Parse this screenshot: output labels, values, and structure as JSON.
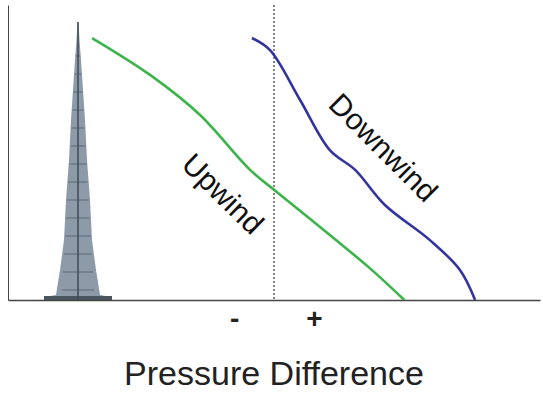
{
  "chart_data": {
    "type": "line",
    "x_label": "Pressure Difference",
    "xlim": [
      -10,
      10
    ],
    "xticks": [
      {
        "value": -1.5,
        "label": "-"
      },
      {
        "value": 1.5,
        "label": "+"
      }
    ],
    "ylim": [
      0,
      100
    ],
    "tick_labels": "x",
    "vline": 0,
    "series": [
      {
        "name": "Upwind",
        "color": "#3cb44b",
        "x": [
          -6.84,
          -4.66,
          -2.78,
          -0.9,
          0.15,
          2.1,
          3.6,
          4.9
        ],
        "values": [
          88.8,
          76.3,
          62.7,
          44.1,
          36.3,
          22.0,
          10.8,
          0
        ]
      },
      {
        "name": "Downwind",
        "color": "#34349e",
        "x": [
          -0.83,
          -0.15,
          0.98,
          2.1,
          3.05,
          4.17,
          5.86,
          6.99,
          7.56
        ],
        "values": [
          88.8,
          84.7,
          67.8,
          50.8,
          44.1,
          32.2,
          20.3,
          10.2,
          0
        ]
      }
    ]
  }
}
